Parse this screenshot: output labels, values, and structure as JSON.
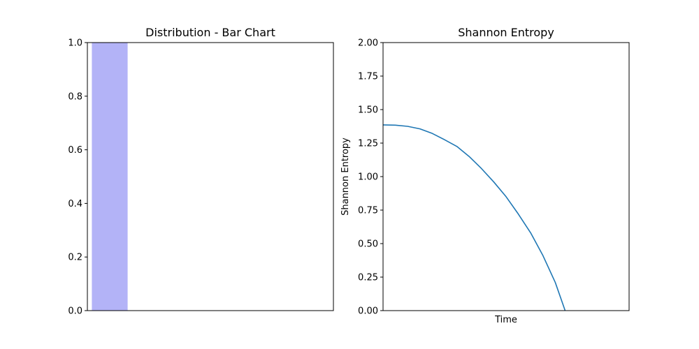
{
  "chart_data": [
    {
      "type": "bar",
      "title": "Distribution - Bar Chart",
      "xlabel": "",
      "ylabel": "",
      "ylim": [
        0,
        1.0
      ],
      "xlim": [
        -0.5,
        5.0
      ],
      "categories": [
        "",
        "",
        "",
        ""
      ],
      "values": [
        1.0,
        0.0,
        0.0,
        0.0
      ],
      "yticks": [
        0.0,
        0.2,
        0.4,
        0.6,
        0.8,
        1.0
      ],
      "ytick_labels": [
        "0.0",
        "0.2",
        "0.4",
        "0.6",
        "0.8",
        "1.0"
      ],
      "bar_color": "#b3b3f7",
      "grid": false
    },
    {
      "type": "line",
      "title": "Shannon Entropy",
      "xlabel": "Time",
      "ylabel": "Shannon Entropy",
      "ylim": [
        0,
        2.0
      ],
      "xlim": [
        0,
        1
      ],
      "yticks": [
        0.0,
        0.25,
        0.5,
        0.75,
        1.0,
        1.25,
        1.5,
        1.75,
        2.0
      ],
      "ytick_labels": [
        "0.00",
        "0.25",
        "0.50",
        "0.75",
        "1.00",
        "1.25",
        "1.50",
        "1.75",
        "2.00"
      ],
      "line_color": "#1f77b4",
      "grid": false,
      "series": [
        {
          "x": [
            0.0,
            0.05,
            0.1,
            0.15,
            0.2,
            0.25,
            0.3,
            0.35,
            0.4,
            0.45,
            0.5,
            0.55,
            0.6,
            0.65,
            0.7,
            0.74
          ],
          "y": [
            1.386,
            1.384,
            1.375,
            1.356,
            1.322,
            1.275,
            1.225,
            1.15,
            1.06,
            0.96,
            0.85,
            0.72,
            0.58,
            0.41,
            0.21,
            0.0
          ]
        }
      ]
    }
  ]
}
